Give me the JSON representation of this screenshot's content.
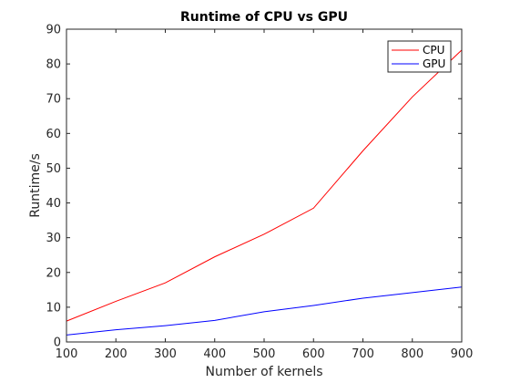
{
  "chart_data": {
    "type": "line",
    "title": "Runtime of CPU vs GPU",
    "xlabel": "Number of kernels",
    "ylabel": "Runtime/s",
    "xlim": [
      100,
      900
    ],
    "ylim": [
      0,
      90
    ],
    "xticks": [
      100,
      200,
      300,
      400,
      500,
      600,
      700,
      800,
      900
    ],
    "yticks": [
      0,
      10,
      20,
      30,
      40,
      50,
      60,
      70,
      80,
      90
    ],
    "grid": false,
    "legend_position": "top-right",
    "x": [
      100,
      200,
      300,
      400,
      500,
      600,
      700,
      800,
      900
    ],
    "series": [
      {
        "name": "CPU",
        "color": "#ff0000",
        "values": [
          6,
          11.7,
          17,
          24.5,
          31,
          38.5,
          55,
          70.5,
          84
        ]
      },
      {
        "name": "GPU",
        "color": "#0000ff",
        "values": [
          2,
          3.5,
          4.7,
          6.2,
          8.7,
          10.5,
          12.6,
          14.2,
          15.8
        ]
      }
    ]
  }
}
